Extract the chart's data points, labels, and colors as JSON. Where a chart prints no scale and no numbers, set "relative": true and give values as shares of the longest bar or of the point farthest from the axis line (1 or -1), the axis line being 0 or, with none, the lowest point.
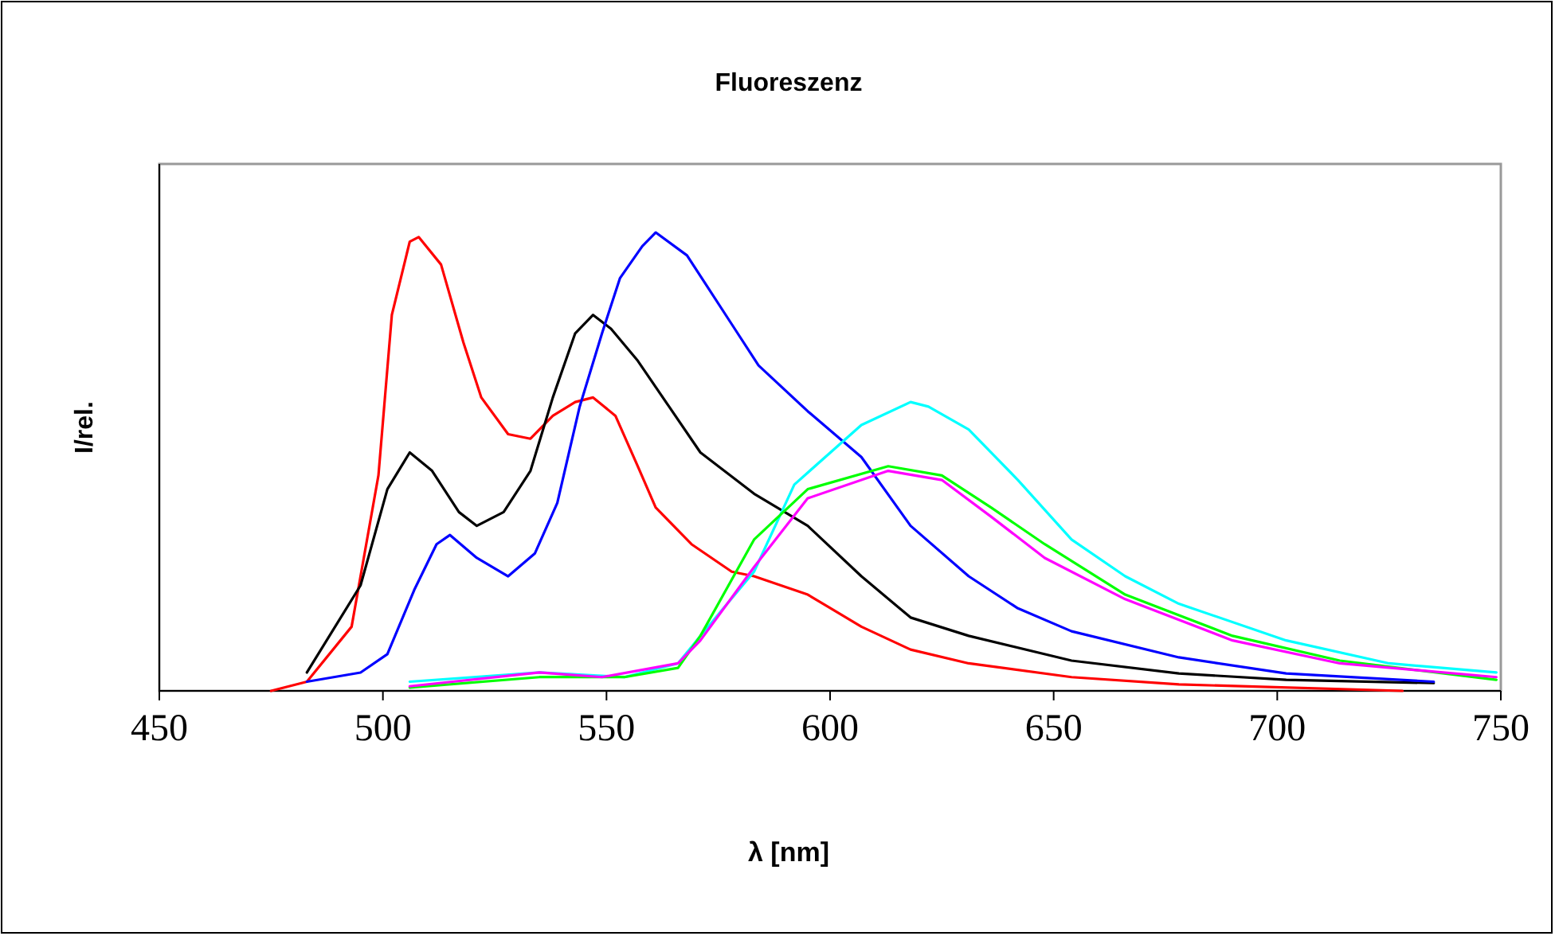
{
  "chart_data": {
    "type": "line",
    "title": "Fluoreszenz",
    "xlabel": "λ [nm]",
    "ylabel": "I/rel.",
    "relative": true,
    "xlim": [
      450,
      750
    ],
    "xticks": [
      450,
      500,
      550,
      600,
      650,
      700,
      750
    ],
    "grid": false,
    "line_style": "solid",
    "series": [
      {
        "color": "#ff0000",
        "x": [
          475,
          483,
          493,
          499,
          502,
          506,
          508,
          513,
          518,
          522,
          528,
          533,
          538,
          543,
          547,
          552,
          557,
          561,
          569,
          578,
          583,
          595,
          607,
          618,
          631,
          654,
          678,
          728
        ],
        "values": [
          0.0,
          0.02,
          0.14,
          0.47,
          0.82,
          0.98,
          0.99,
          0.93,
          0.76,
          0.64,
          0.56,
          0.55,
          0.6,
          0.63,
          0.64,
          0.6,
          0.49,
          0.4,
          0.32,
          0.26,
          0.25,
          0.21,
          0.14,
          0.09,
          0.06,
          0.03,
          0.014,
          0.0
        ]
      },
      {
        "color": "#000000",
        "x": [
          483,
          495,
          501,
          506,
          511,
          517,
          521,
          527,
          533,
          538,
          543,
          547,
          551,
          557,
          564,
          571,
          583,
          595,
          607,
          618,
          631,
          654,
          678,
          702,
          735
        ],
        "values": [
          0.04,
          0.23,
          0.44,
          0.52,
          0.48,
          0.39,
          0.36,
          0.39,
          0.48,
          0.64,
          0.78,
          0.82,
          0.79,
          0.72,
          0.62,
          0.52,
          0.43,
          0.36,
          0.25,
          0.16,
          0.12,
          0.066,
          0.038,
          0.024,
          0.017
        ]
      },
      {
        "color": "#0000ff",
        "x": [
          483,
          495,
          501,
          507,
          512,
          515,
          521,
          528,
          534,
          539,
          544,
          549,
          553,
          558,
          561,
          568,
          572,
          578,
          584,
          595,
          607,
          618,
          631,
          642,
          654,
          678,
          702,
          735
        ],
        "values": [
          0.02,
          0.04,
          0.08,
          0.22,
          0.32,
          0.34,
          0.29,
          0.25,
          0.3,
          0.41,
          0.62,
          0.78,
          0.9,
          0.97,
          1.0,
          0.95,
          0.89,
          0.8,
          0.71,
          0.61,
          0.51,
          0.36,
          0.25,
          0.18,
          0.13,
          0.073,
          0.038,
          0.02
        ]
      },
      {
        "color": "#00ffff",
        "x": [
          506,
          535,
          554,
          566,
          571,
          583,
          592,
          607,
          618,
          622,
          631,
          642,
          654,
          666,
          678,
          702,
          725,
          749
        ],
        "values": [
          0.02,
          0.04,
          0.03,
          0.06,
          0.12,
          0.26,
          0.45,
          0.58,
          0.63,
          0.62,
          0.57,
          0.46,
          0.33,
          0.25,
          0.19,
          0.11,
          0.06,
          0.04
        ]
      },
      {
        "color": "#00ff00",
        "x": [
          506,
          535,
          554,
          566,
          571,
          583,
          595,
          613,
          625,
          636,
          648,
          666,
          690,
          714,
          749
        ],
        "values": [
          0.007,
          0.03,
          0.03,
          0.05,
          0.12,
          0.33,
          0.44,
          0.49,
          0.47,
          0.4,
          0.32,
          0.21,
          0.12,
          0.066,
          0.024
        ]
      },
      {
        "color": "#ff00ff",
        "x": [
          506,
          535,
          549,
          566,
          571,
          583,
          595,
          613,
          625,
          636,
          648,
          666,
          690,
          714,
          749
        ],
        "values": [
          0.01,
          0.04,
          0.03,
          0.06,
          0.11,
          0.27,
          0.42,
          0.48,
          0.46,
          0.38,
          0.29,
          0.2,
          0.11,
          0.06,
          0.03
        ]
      }
    ]
  }
}
